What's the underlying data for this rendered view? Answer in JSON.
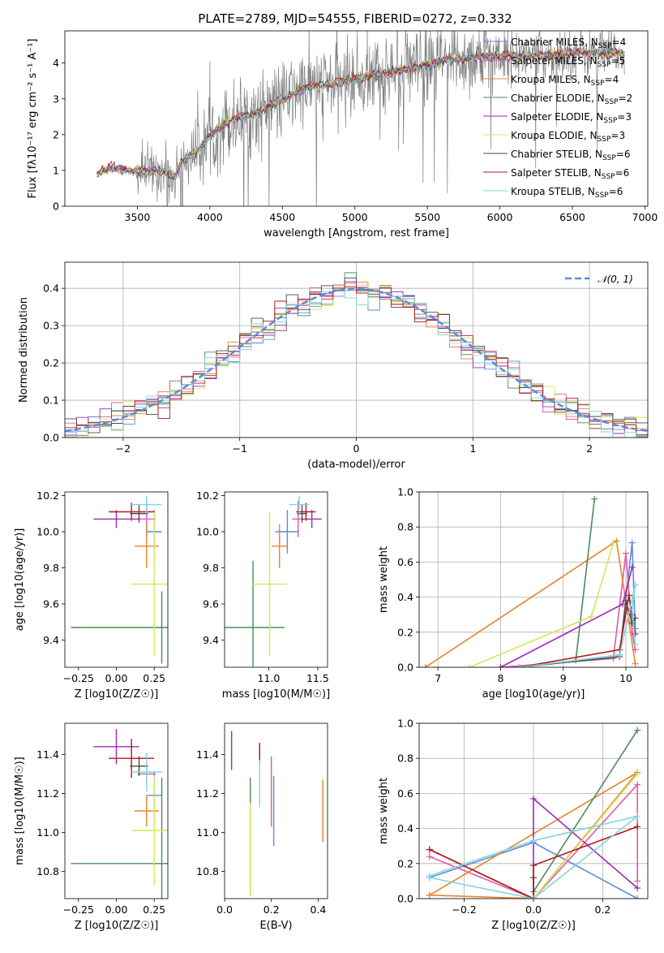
{
  "page_title": "PLATE=2789, MJD=54555, FIBERID=0272, z=0.332",
  "colors": {
    "Chabrier MILES": "#5b8bd9",
    "Salpeter MILES": "#e05aa8",
    "Kroupa MILES": "#e5832c",
    "Chabrier ELODIE": "#4e8a57",
    "Salpeter ELODIE": "#9b2bb3",
    "Kroupa ELODIE": "#d3e85a",
    "Chabrier STELIB": "#4a4a4a",
    "Salpeter STELIB": "#b31a1a",
    "Kroupa STELIB": "#7fd6dc",
    "data": "#808080",
    "normal": "#5b8bd9"
  },
  "chart_data": [
    {
      "type": "line",
      "name": "spectrum",
      "title": "PLATE=2789, MJD=54555, FIBERID=0272, z=0.332",
      "xlabel": "wavelength [Angstrom, rest frame]",
      "ylabel": "Flux [fλ10⁻¹⁷ erg cm⁻² s⁻¹ A⁻¹]",
      "xlim": [
        3000,
        7020
      ],
      "ylim": [
        0,
        4.9
      ],
      "xticks": [
        3500,
        4000,
        4500,
        5000,
        5500,
        6000,
        6500,
        7000
      ],
      "yticks": [
        0,
        1,
        2,
        3,
        4
      ],
      "grid": false,
      "legend_position": "right",
      "legend": [
        "Chabrier MILES, N_SSP=4",
        "Salpeter MILES, N_SSP=5",
        "Kroupa MILES, N_SSP=4",
        "Chabrier ELODIE, N_SSP=2",
        "Salpeter ELODIE, N_SSP=3",
        "Kroupa ELODIE, N_SSP=3",
        "Chabrier STELIB, N_SSP=6",
        "Salpeter STELIB, N_SSP=6",
        "Kroupa STELIB, N_SSP=6"
      ],
      "data_x_range": [
        3220,
        6860
      ],
      "model_continuum": {
        "x": [
          3220,
          3300,
          3400,
          3500,
          3600,
          3700,
          3750,
          3800,
          3900,
          4000,
          4100,
          4200,
          4300,
          4400,
          4500,
          4600,
          4700,
          4800,
          5000,
          5200,
          5400,
          5600,
          5800,
          6000,
          6200,
          6400,
          6600,
          6860
        ],
        "y": [
          0.9,
          1.05,
          1.05,
          0.95,
          1.0,
          0.95,
          0.75,
          1.2,
          1.5,
          1.95,
          2.3,
          2.5,
          2.55,
          2.8,
          2.95,
          3.2,
          3.35,
          3.4,
          3.55,
          3.7,
          3.85,
          4.05,
          4.15,
          4.2,
          4.2,
          4.25,
          4.3,
          4.25
        ]
      }
    },
    {
      "type": "step",
      "name": "residuals",
      "xlabel": "(data-model)/error",
      "ylabel": "Normed distribution",
      "xlim": [
        -2.5,
        2.5
      ],
      "ylim": [
        0,
        0.47
      ],
      "xticks": [
        -2,
        -1,
        0,
        1,
        2
      ],
      "yticks": [
        0.0,
        0.1,
        0.2,
        0.3,
        0.4
      ],
      "grid": true,
      "legend_position": "top-right",
      "normal_label": "𝒩(0, 1)",
      "bin_width": 0.1
    },
    {
      "type": "errorbar",
      "name": "age-vs-Z",
      "xlabel": "Z [log10(Z/Z☉)]",
      "ylabel": "age  [log10(age/yr)]",
      "xlim": [
        -0.34,
        0.34
      ],
      "ylim": [
        9.25,
        10.22
      ],
      "xticks": [
        -0.25,
        0.0,
        0.25
      ],
      "yticks": [
        9.4,
        9.6,
        9.8,
        10.0,
        10.2
      ],
      "points": [
        {
          "model": "Chabrier MILES",
          "x": 0.25,
          "y": 10.0,
          "xerr": 0.05,
          "yerr": 0.12
        },
        {
          "model": "Salpeter MILES",
          "x": 0.2,
          "y": 10.07,
          "xerr": 0.06,
          "yerr": 0.1
        },
        {
          "model": "Kroupa MILES",
          "x": 0.2,
          "y": 9.92,
          "xerr": 0.08,
          "yerr": 0.12
        },
        {
          "model": "Chabrier ELODIE",
          "x": 0.3,
          "y": 9.47,
          "xerr": 0.6,
          "yerr": 0.2
        },
        {
          "model": "Salpeter ELODIE",
          "x": 0.0,
          "y": 10.07,
          "xerr": 0.15,
          "yerr": 0.05
        },
        {
          "model": "Kroupa ELODIE",
          "x": 0.25,
          "y": 9.71,
          "xerr": 0.15,
          "yerr": 0.4
        },
        {
          "model": "Chabrier STELIB",
          "x": 0.15,
          "y": 10.1,
          "xerr": 0.06,
          "yerr": 0.05
        },
        {
          "model": "Salpeter STELIB",
          "x": 0.1,
          "y": 10.11,
          "xerr": 0.15,
          "yerr": 0.05
        },
        {
          "model": "Kroupa STELIB",
          "x": 0.2,
          "y": 10.15,
          "xerr": 0.1,
          "yerr": 0.05
        }
      ]
    },
    {
      "type": "errorbar",
      "name": "age-vs-mass",
      "xlabel": "mass [log10(M/M☉)]",
      "ylabel": "",
      "xlim": [
        10.55,
        11.6
      ],
      "ylim": [
        9.25,
        10.22
      ],
      "xticks": [
        11.0,
        11.5
      ],
      "yticks": [
        9.4,
        9.6,
        9.8,
        10.0,
        10.2
      ],
      "points": [
        {
          "model": "Chabrier MILES",
          "x": 11.19,
          "y": 10.0,
          "xerr": 0.12,
          "yerr": 0.12
        },
        {
          "model": "Salpeter MILES",
          "x": 11.3,
          "y": 10.07,
          "xerr": 0.06,
          "yerr": 0.1
        },
        {
          "model": "Kroupa MILES",
          "x": 11.11,
          "y": 9.92,
          "xerr": 0.08,
          "yerr": 0.12
        },
        {
          "model": "Chabrier ELODIE",
          "x": 10.84,
          "y": 9.47,
          "xerr": 0.32,
          "yerr": 0.37
        },
        {
          "model": "Salpeter ELODIE",
          "x": 11.44,
          "y": 10.07,
          "xerr": 0.1,
          "yerr": 0.05
        },
        {
          "model": "Kroupa ELODIE",
          "x": 11.01,
          "y": 9.71,
          "xerr": 0.17,
          "yerr": 0.4
        },
        {
          "model": "Chabrier STELIB",
          "x": 11.34,
          "y": 10.1,
          "xerr": 0.05,
          "yerr": 0.05
        },
        {
          "model": "Salpeter STELIB",
          "x": 11.38,
          "y": 10.11,
          "xerr": 0.1,
          "yerr": 0.05
        },
        {
          "model": "Kroupa STELIB",
          "x": 11.31,
          "y": 10.15,
          "xerr": 0.1,
          "yerr": 0.05
        }
      ]
    },
    {
      "type": "line",
      "name": "mass-weight-vs-age",
      "xlabel": "age  [log10(age/yr)]",
      "ylabel": "mass weight",
      "xlim": [
        6.7,
        10.35
      ],
      "ylim": [
        0,
        1.0
      ],
      "xticks": [
        7,
        8,
        9,
        10
      ],
      "yticks": [
        0.0,
        0.2,
        0.4,
        0.6,
        0.8,
        1.0
      ],
      "grid": true,
      "series": [
        {
          "model": "Chabrier MILES",
          "x": [
            8.3,
            9.9,
            10.1,
            10.15
          ],
          "y": [
            0.0,
            0.07,
            0.71,
            0.22
          ]
        },
        {
          "model": "Salpeter MILES",
          "x": [
            8.0,
            9.8,
            10.0,
            10.1,
            10.15
          ],
          "y": [
            0.0,
            0.05,
            0.65,
            0.2,
            0.1
          ]
        },
        {
          "model": "Kroupa MILES",
          "x": [
            6.8,
            9.85,
            10.05,
            10.15
          ],
          "y": [
            0.0,
            0.72,
            0.26,
            0.02
          ]
        },
        {
          "model": "Chabrier ELODIE",
          "x": [
            9.2,
            9.5
          ],
          "y": [
            0.04,
            0.96
          ]
        },
        {
          "model": "Salpeter ELODIE",
          "x": [
            8.0,
            9.95,
            10.1
          ],
          "y": [
            0.0,
            0.36,
            0.57
          ]
        },
        {
          "model": "Kroupa ELODIE",
          "x": [
            7.5,
            9.45,
            9.8
          ],
          "y": [
            0.0,
            0.29,
            0.71
          ]
        },
        {
          "model": "Chabrier STELIB",
          "x": [
            8.3,
            9.9,
            10.0,
            10.1,
            10.15
          ],
          "y": [
            0.0,
            0.06,
            0.38,
            0.25,
            0.28
          ]
        },
        {
          "model": "Salpeter STELIB",
          "x": [
            8.3,
            9.9,
            10.05,
            10.1,
            10.15
          ],
          "y": [
            0.0,
            0.1,
            0.41,
            0.3,
            0.19
          ]
        },
        {
          "model": "Kroupa STELIB",
          "x": [
            8.3,
            9.9,
            10.15,
            10.1,
            10.15
          ],
          "y": [
            0.0,
            0.07,
            0.47,
            0.33,
            0.13
          ]
        }
      ]
    },
    {
      "type": "errorbar",
      "name": "mass-vs-Z",
      "xlabel": "Z [log10(Z/Z☉)]",
      "ylabel": "mass [log10(M/M☉)]",
      "xlim": [
        -0.34,
        0.34
      ],
      "ylim": [
        10.66,
        11.56
      ],
      "xticks": [
        -0.25,
        0.0,
        0.25
      ],
      "yticks": [
        10.8,
        11.0,
        11.2,
        11.4
      ],
      "points": [
        {
          "model": "Chabrier MILES",
          "x": 0.25,
          "y": 11.19,
          "xerr": 0.05,
          "yerr": 0.12
        },
        {
          "model": "Salpeter MILES",
          "x": 0.2,
          "y": 11.3,
          "xerr": 0.06,
          "yerr": 0.06
        },
        {
          "model": "Kroupa MILES",
          "x": 0.2,
          "y": 11.11,
          "xerr": 0.08,
          "yerr": 0.08
        },
        {
          "model": "Chabrier ELODIE",
          "x": 0.3,
          "y": 10.84,
          "xerr": 0.6,
          "yerr": 0.44
        },
        {
          "model": "Salpeter ELODIE",
          "x": 0.0,
          "y": 11.44,
          "xerr": 0.15,
          "yerr": 0.09
        },
        {
          "model": "Kroupa ELODIE",
          "x": 0.25,
          "y": 11.01,
          "xerr": 0.15,
          "yerr": 0.28
        },
        {
          "model": "Chabrier STELIB",
          "x": 0.15,
          "y": 11.34,
          "xerr": 0.06,
          "yerr": 0.05
        },
        {
          "model": "Salpeter STELIB",
          "x": 0.1,
          "y": 11.38,
          "xerr": 0.15,
          "yerr": 0.1
        },
        {
          "model": "Kroupa STELIB",
          "x": 0.2,
          "y": 11.31,
          "xerr": 0.1,
          "yerr": 0.1
        }
      ]
    },
    {
      "type": "errorbar",
      "name": "mass-vs-EBV",
      "xlabel": "E(B-V)",
      "ylabel": "",
      "xlim": [
        0.0,
        0.44
      ],
      "ylim": [
        10.66,
        11.56
      ],
      "xticks": [
        0.0,
        0.2,
        0.4
      ],
      "yticks": [
        10.8,
        11.0,
        11.2,
        11.4
      ],
      "points": [
        {
          "model": "Chabrier MILES",
          "x": 0.21,
          "y": 11.11,
          "xerr": 0.0,
          "yerr": 0.18
        },
        {
          "model": "Salpeter MILES",
          "x": 0.2,
          "y": 11.21,
          "xerr": 0.0,
          "yerr": 0.18
        },
        {
          "model": "Kroupa MILES",
          "x": 0.42,
          "y": 11.11,
          "xerr": 0.0,
          "yerr": 0.16
        },
        {
          "model": "Chabrier ELODIE",
          "x": 0.11,
          "y": 10.98,
          "xerr": 0.0,
          "yerr": 0.3
        },
        {
          "model": "Salpeter ELODIE",
          "x": 0.03,
          "y": 11.42,
          "xerr": 0.0,
          "yerr": 0.1
        },
        {
          "model": "Kroupa ELODIE",
          "x": 0.11,
          "y": 10.91,
          "xerr": 0.0,
          "yerr": 0.24
        },
        {
          "model": "Chabrier STELIB",
          "x": 0.15,
          "y": 11.4,
          "xerr": 0.0,
          "yerr": 0.05
        },
        {
          "model": "Salpeter STELIB",
          "x": 0.15,
          "y": 11.42,
          "xerr": 0.0,
          "yerr": 0.04
        },
        {
          "model": "Kroupa STELIB",
          "x": 0.15,
          "y": 11.25,
          "xerr": 0.0,
          "yerr": 0.12
        }
      ]
    },
    {
      "type": "line",
      "name": "mass-weight-vs-Z",
      "xlabel": "Z [log10(Z/Z☉)]",
      "ylabel": "mass weight",
      "xlim": [
        -0.33,
        0.33
      ],
      "ylim": [
        0,
        1.0
      ],
      "xticks": [
        -0.2,
        0.0,
        0.2
      ],
      "yticks": [
        0.0,
        0.2,
        0.4,
        0.6,
        0.8,
        1.0
      ],
      "grid": true,
      "series": [
        {
          "model": "Chabrier MILES",
          "x": [
            -0.3,
            0.0,
            0.3
          ],
          "y": [
            0.12,
            0.32,
            0.0
          ]
        },
        {
          "model": "Salpeter MILES",
          "x": [
            -0.3,
            0.0,
            0.3,
            0.3
          ],
          "y": [
            0.24,
            0.0,
            0.65,
            0.1
          ]
        },
        {
          "model": "Kroupa MILES",
          "x": [
            -0.3,
            0.0,
            0.3,
            -0.3
          ],
          "y": [
            0.02,
            0.0,
            0.72,
            0.02
          ]
        },
        {
          "model": "Chabrier ELODIE",
          "x": [
            0.0,
            0.3
          ],
          "y": [
            0.04,
            0.96
          ]
        },
        {
          "model": "Salpeter ELODIE",
          "x": [
            0.0,
            0.0,
            0.3
          ],
          "y": [
            0.0,
            0.57,
            0.06
          ]
        },
        {
          "model": "Kroupa ELODIE",
          "x": [
            0.0,
            0.3
          ],
          "y": [
            0.0,
            0.71
          ]
        },
        {
          "model": "Chabrier STELIB",
          "x": [
            -0.3,
            0.0,
            0.0
          ],
          "y": [
            0.28,
            0.0,
            0.12
          ]
        },
        {
          "model": "Salpeter STELIB",
          "x": [
            -0.3,
            0.0,
            0.0,
            0.3
          ],
          "y": [
            0.28,
            0.0,
            0.19,
            0.41
          ]
        },
        {
          "model": "Kroupa STELIB",
          "x": [
            -0.3,
            0.0,
            0.3,
            0.0,
            -0.3
          ],
          "y": [
            0.13,
            0.33,
            0.47,
            0.0,
            0.12
          ]
        }
      ]
    }
  ]
}
